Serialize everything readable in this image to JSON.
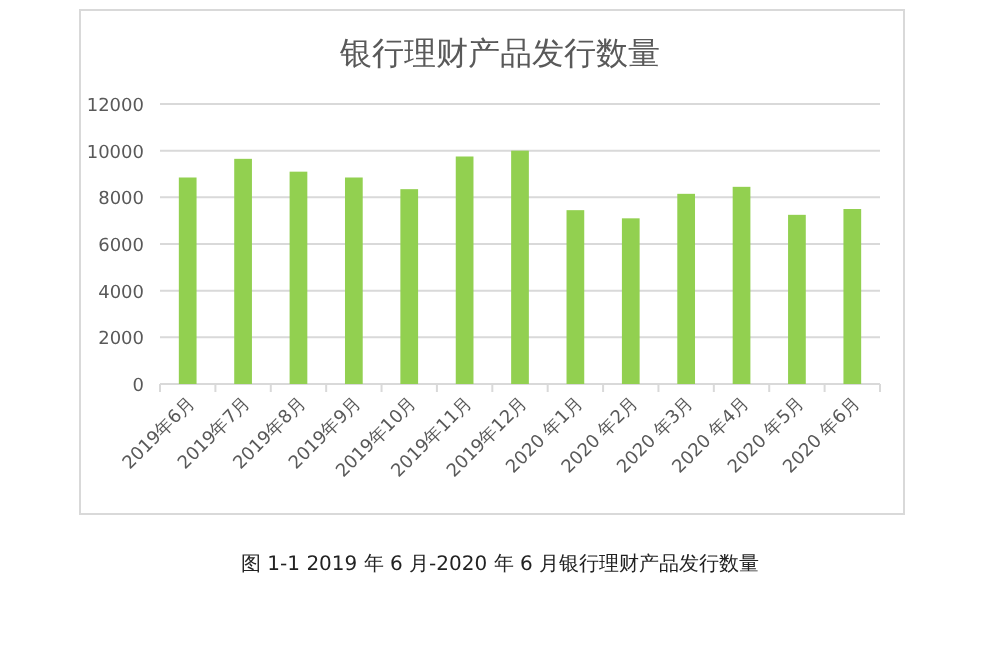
{
  "chart_data": {
    "type": "bar",
    "title": "银行理财产品发行数量",
    "categories": [
      "2019年6月",
      "2019年7月",
      "2019年8月",
      "2019年9月",
      "2019年10月",
      "2019年11月",
      "2019年12月",
      "2020 年1月",
      "2020 年2月",
      "2020 年3月",
      "2020 年4月",
      "2020 年5月",
      "2020 年6月"
    ],
    "values": [
      8850,
      9650,
      9100,
      8850,
      8350,
      9750,
      10000,
      7450,
      7100,
      8150,
      8450,
      7250,
      7500
    ],
    "color": "#92d050",
    "ylim": [
      0,
      12000
    ],
    "yticks": [
      0,
      2000,
      4000,
      6000,
      8000,
      10000,
      12000
    ],
    "grid": "y",
    "annotations": [
      "图 1-1 2019 年 6 月-2020 年 6 月银行理财产品发行数量"
    ]
  }
}
